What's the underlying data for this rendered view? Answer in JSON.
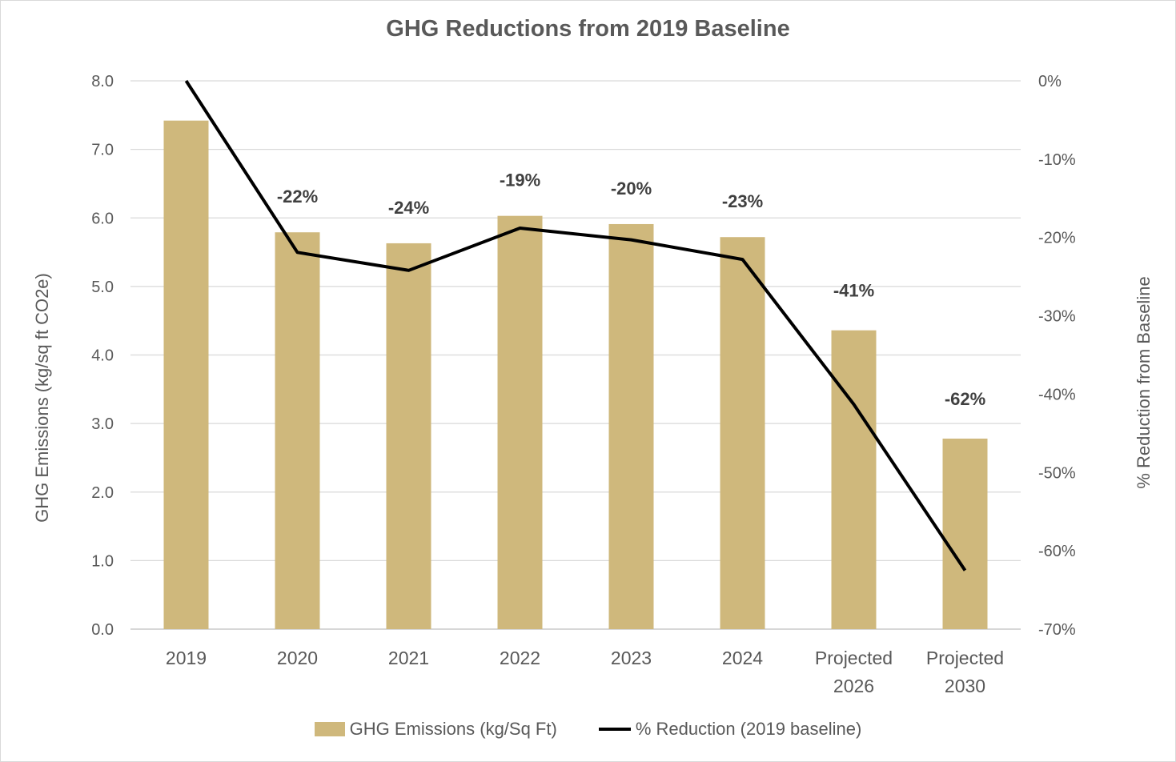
{
  "chart_data": {
    "type": "bar+line",
    "title": "GHG Reductions from 2019 Baseline",
    "categories": [
      [
        "2019"
      ],
      [
        "2020"
      ],
      [
        "2021"
      ],
      [
        "2022"
      ],
      [
        "2023"
      ],
      [
        "2024"
      ],
      [
        "Projected",
        "2026"
      ],
      [
        "Projected",
        "2030"
      ]
    ],
    "ylabel": "GHG Emissions (kg/sq ft CO2e)",
    "y2label": "% Reduction from Baseline",
    "ylim": [
      0,
      8
    ],
    "y_ticks": [
      "0.0",
      "1.0",
      "2.0",
      "3.0",
      "4.0",
      "5.0",
      "6.0",
      "7.0",
      "8.0"
    ],
    "y2lim": [
      -70,
      0
    ],
    "y2_ticks": [
      "-70%",
      "-60%",
      "-50%",
      "-40%",
      "-30%",
      "-20%",
      "-10%",
      "0%"
    ],
    "grid": true,
    "legend_position": "bottom",
    "series": [
      {
        "name": "GHG Emissions (kg/Sq Ft)",
        "type": "bar",
        "axis": "left",
        "color": "#CFB87C",
        "values": [
          7.42,
          5.79,
          5.63,
          6.03,
          5.91,
          5.72,
          4.36,
          2.78
        ]
      },
      {
        "name": "% Reduction (2019 baseline)",
        "type": "line",
        "axis": "right",
        "color": "#000000",
        "values": [
          0,
          -21.9,
          -24.2,
          -18.8,
          -20.3,
          -22.8,
          -41.3,
          -62.5
        ],
        "data_labels": [
          "",
          "-22%",
          "-24%",
          "-19%",
          "-20%",
          "-23%",
          "-41%",
          "-62%"
        ]
      }
    ]
  }
}
